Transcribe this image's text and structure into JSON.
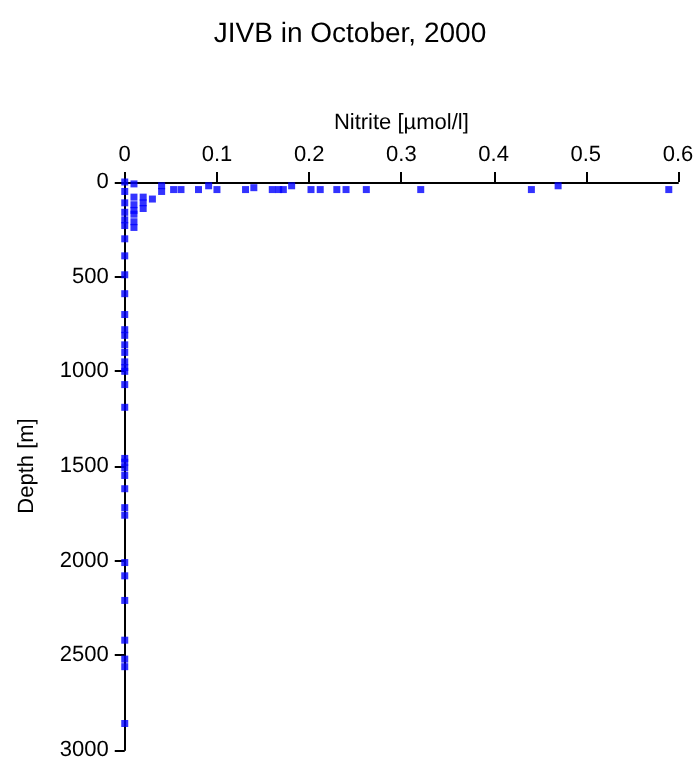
{
  "chart_data": {
    "type": "scatter",
    "title": "JIVB in October, 2000",
    "xlabel": "Nitrite [µmol/l]",
    "ylabel": "Depth [m]",
    "xlim": [
      0,
      0.6
    ],
    "xticks": [
      0,
      0.1,
      0.2,
      0.3,
      0.4,
      0.5,
      0.6
    ],
    "ylim": [
      3000,
      0
    ],
    "yticks": [
      0,
      500,
      1000,
      1500,
      2000,
      2500,
      3000
    ],
    "grid": false,
    "marker": "square",
    "series": [
      {
        "color": "#0000ff",
        "x": [
          0.04,
          0.04,
          0.053,
          0.061,
          0.08,
          0.091,
          0.1,
          0.131,
          0.14,
          0.16,
          0.167,
          0.172,
          0.181,
          0.202,
          0.212,
          0.23,
          0.24,
          0.262,
          0.321,
          0.441,
          0.47,
          0.59
        ],
        "values": [
          20,
          50,
          40,
          40,
          40,
          20,
          40,
          40,
          30,
          40,
          40,
          40,
          20,
          40,
          40,
          40,
          40,
          40,
          40,
          40,
          20,
          40
        ]
      },
      {
        "color": "#0000ff",
        "x": [
          0.01,
          0.01,
          0.01,
          0.01,
          0.01,
          0.01,
          0.01,
          0.02,
          0.02,
          0.02,
          0.03
        ],
        "values": [
          10,
          80,
          120,
          150,
          170,
          210,
          240,
          80,
          110,
          140,
          90
        ]
      },
      {
        "color": "#0000ff",
        "x": [
          0,
          0,
          0,
          0,
          0,
          0,
          0,
          0,
          0,
          0,
          0,
          0,
          0,
          0,
          0,
          0,
          0,
          0,
          0,
          0,
          0,
          0,
          0,
          0,
          0,
          0,
          0,
          0,
          0,
          0,
          0,
          0,
          0,
          0
        ],
        "values": [
          50,
          110,
          160,
          200,
          230,
          300,
          390,
          490,
          590,
          700,
          780,
          810,
          860,
          900,
          950,
          980,
          1000,
          1070,
          1190,
          1460,
          1480,
          1510,
          1550,
          1620,
          1720,
          1760,
          2010,
          2080,
          2210,
          2420,
          2520,
          2560,
          2860,
          0
        ]
      }
    ]
  }
}
